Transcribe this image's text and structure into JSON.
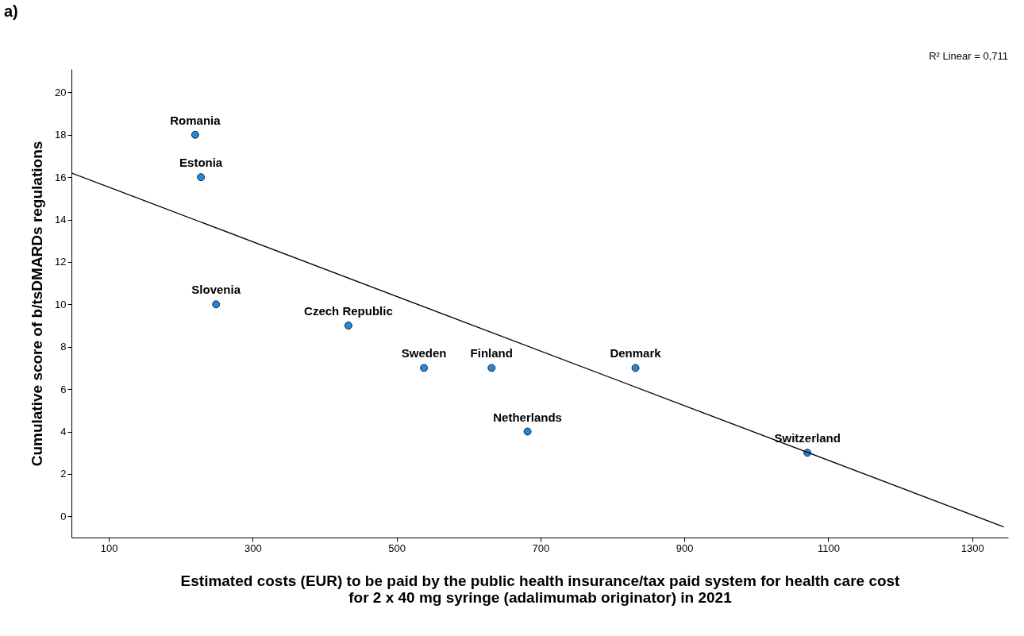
{
  "chart_data": {
    "type": "scatter",
    "title": "a)",
    "xlabel": "Estimated costs (EUR) to be paid by the public health insurance/tax paid system for health care cost for 2 x 40 mg syringe (adalimumab originator) in 2021",
    "ylabel": "Cumulative score of b/tsDMARDs regulations",
    "series": [
      {
        "marker": "circle",
        "color": "#1e88e5",
        "x": [
          220,
          228,
          249,
          433,
          538,
          632,
          682,
          832,
          1071
        ],
        "values": [
          18,
          16,
          10,
          9,
          7,
          7,
          4,
          7,
          3
        ]
      },
      {
        "type": "line",
        "marker": "none",
        "color": "#000000",
        "x": [
          48,
          1344
        ],
        "values": [
          16.2,
          -0.5
        ]
      }
    ],
    "annotations": [
      {
        "text": "Romania",
        "x": 220,
        "y": 18
      },
      {
        "text": "Estonia",
        "x": 228,
        "y": 16
      },
      {
        "text": "Slovenia",
        "x": 249,
        "y": 10
      },
      {
        "text": "Czech Republic",
        "x": 433,
        "y": 9
      },
      {
        "text": "Sweden",
        "x": 538,
        "y": 7
      },
      {
        "text": "Finland",
        "x": 632,
        "y": 7
      },
      {
        "text": "Netherlands",
        "x": 682,
        "y": 4
      },
      {
        "text": "Denmark",
        "x": 832,
        "y": 7
      },
      {
        "text": "Switzerland",
        "x": 1071,
        "y": 3
      },
      "R² Linear = 0,711"
    ],
    "xlim": [
      48,
      1350
    ],
    "ylim": [
      -1,
      21.1
    ],
    "xticks": [
      100,
      300,
      500,
      700,
      900,
      1100,
      1300
    ],
    "yticks": [
      0,
      2,
      4,
      6,
      8,
      10,
      12,
      14,
      16,
      18,
      20
    ],
    "grid": false
  }
}
